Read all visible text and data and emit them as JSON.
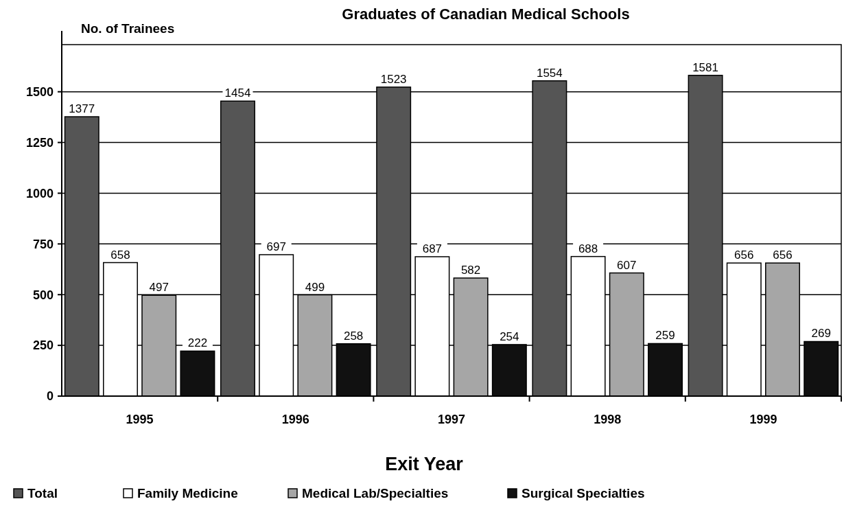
{
  "chart_data": {
    "type": "bar",
    "title": "Graduates of Canadian Medical Schools",
    "ylabel": "No. of Trainees",
    "xlabel": "Exit Year",
    "categories": [
      "1995",
      "1996",
      "1997",
      "1998",
      "1999"
    ],
    "series": [
      {
        "name": "Total",
        "color": "#555555",
        "values": [
          1377,
          1454,
          1523,
          1554,
          1581
        ]
      },
      {
        "name": "Family Medicine",
        "color": "#ffffff",
        "values": [
          658,
          697,
          687,
          688,
          656
        ]
      },
      {
        "name": "Medical Lab/Specialties",
        "color": "#a6a6a6",
        "values": [
          497,
          499,
          582,
          607,
          656
        ]
      },
      {
        "name": "Surgical Specialties",
        "color": "#111111",
        "values": [
          222,
          258,
          254,
          259,
          269
        ]
      }
    ],
    "ylim": [
      0,
      1800
    ],
    "yticks": [
      0,
      250,
      500,
      750,
      1000,
      1250,
      1500
    ],
    "grid": "y",
    "legend": "bottom",
    "data_labels": true
  }
}
